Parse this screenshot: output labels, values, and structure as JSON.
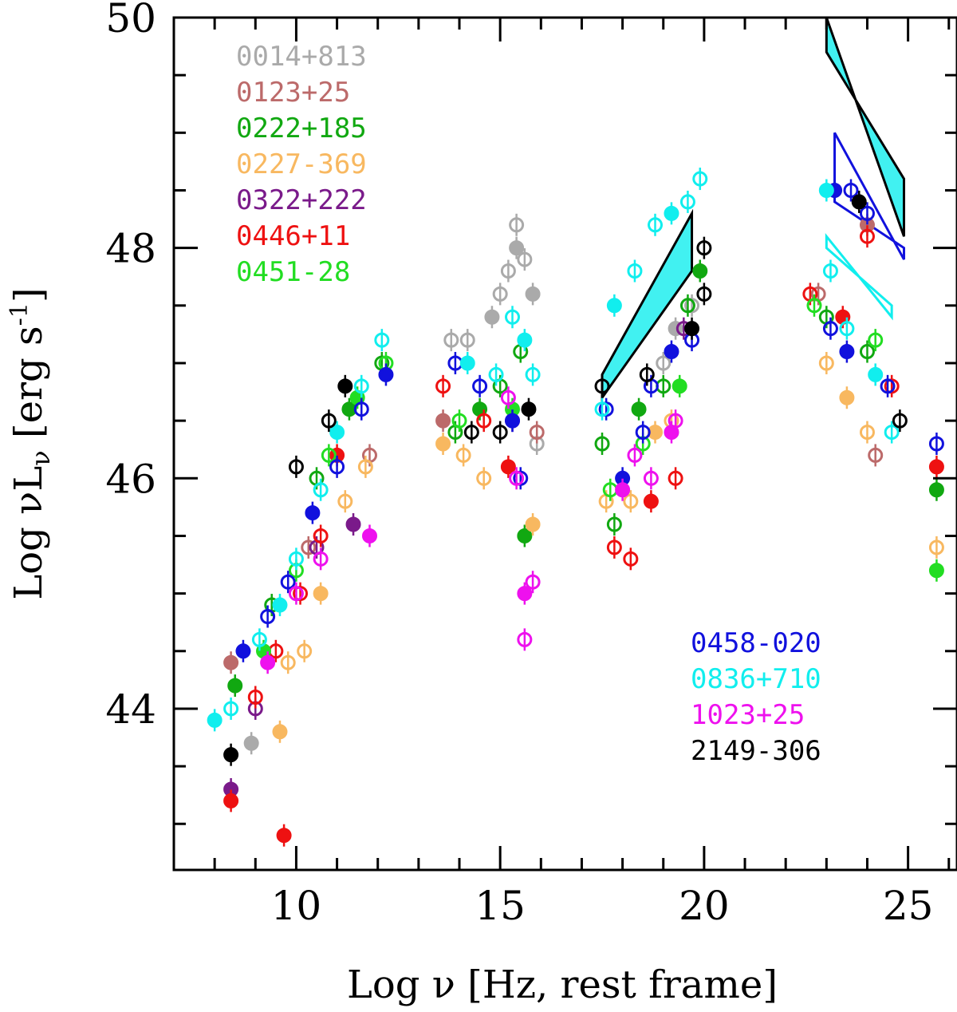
{
  "chart_data": {
    "type": "scatter",
    "xlabel": "Log ν [Hz, rest frame]",
    "ylabel": "Log νL",
    "ylabel_sub": "ν",
    "ylabel_unit": "[erg s",
    "ylabel_unit_sup": "-1",
    "ylabel_unit_end": "]",
    "xlim": [
      7,
      26.2
    ],
    "ylim": [
      42.6,
      50
    ],
    "xticks": [
      {
        "value": 10,
        "label": "10"
      },
      {
        "value": 15,
        "label": "15"
      },
      {
        "value": 20,
        "label": "20"
      },
      {
        "value": 25,
        "label": "25"
      }
    ],
    "yticks": [
      {
        "value": 44,
        "label": "44"
      },
      {
        "value": 46,
        "label": "46"
      },
      {
        "value": 48,
        "label": "48"
      },
      {
        "value": 50,
        "label": "50"
      }
    ],
    "legend_top_left": [
      {
        "name": "0014+813",
        "color": "#aaaaaa"
      },
      {
        "name": "0123+25",
        "color": "#bc6a6a"
      },
      {
        "name": "0222+185",
        "color": "#11a811"
      },
      {
        "name": "0227-369",
        "color": "#f8b860"
      },
      {
        "name": "0322+222",
        "color": "#7a1a8a"
      },
      {
        "name": "0446+11",
        "color": "#ee1111"
      },
      {
        "name": "0451-28",
        "color": "#22dd22"
      }
    ],
    "legend_bottom_right": [
      {
        "name": "0458-020",
        "color": "#1111dd"
      },
      {
        "name": "0836+710",
        "color": "#11eeee"
      },
      {
        "name": "1023+25",
        "color": "#ee11ee"
      },
      {
        "name": "2149-306",
        "color": "#000000"
      }
    ],
    "series": [
      {
        "name": "0014+813",
        "color": "#aaaaaa",
        "points": [
          [
            8.9,
            43.7
          ],
          [
            13.8,
            47.2
          ],
          [
            14.2,
            47.2
          ],
          [
            14.8,
            47.4
          ],
          [
            15.0,
            47.6
          ],
          [
            15.2,
            47.8
          ],
          [
            15.4,
            48.0
          ],
          [
            15.6,
            47.9
          ],
          [
            15.4,
            48.2
          ],
          [
            15.8,
            47.6
          ],
          [
            15.9,
            46.3
          ],
          [
            19.0,
            47.0
          ],
          [
            19.3,
            47.3
          ],
          [
            19.7,
            47.5
          ]
        ]
      },
      {
        "name": "0123+25",
        "color": "#bc6a6a",
        "points": [
          [
            8.4,
            44.4
          ],
          [
            10.3,
            45.4
          ],
          [
            11.8,
            46.2
          ],
          [
            13.6,
            46.5
          ],
          [
            15.9,
            46.4
          ],
          [
            22.8,
            47.6
          ],
          [
            24.0,
            48.2
          ],
          [
            24.2,
            46.2
          ]
        ]
      },
      {
        "name": "0222+185",
        "color": "#11a811",
        "points": [
          [
            8.5,
            44.2
          ],
          [
            9.4,
            44.9
          ],
          [
            10.5,
            46.0
          ],
          [
            11.3,
            46.6
          ],
          [
            12.1,
            47.0
          ],
          [
            13.9,
            46.4
          ],
          [
            14.5,
            46.6
          ],
          [
            15.0,
            46.8
          ],
          [
            15.5,
            47.1
          ],
          [
            15.6,
            45.5
          ],
          [
            17.5,
            46.3
          ],
          [
            17.8,
            45.6
          ],
          [
            18.4,
            46.6
          ],
          [
            19.0,
            46.8
          ],
          [
            19.6,
            47.5
          ],
          [
            19.9,
            47.8
          ],
          [
            23.0,
            47.4
          ],
          [
            24.0,
            47.1
          ],
          [
            25.7,
            45.9
          ]
        ]
      },
      {
        "name": "0227-369",
        "color": "#f8b860",
        "points": [
          [
            9.6,
            43.8
          ],
          [
            9.8,
            44.4
          ],
          [
            10.2,
            44.5
          ],
          [
            10.6,
            45.0
          ],
          [
            11.2,
            45.8
          ],
          [
            11.7,
            46.1
          ],
          [
            13.6,
            46.3
          ],
          [
            14.1,
            46.2
          ],
          [
            14.6,
            46.0
          ],
          [
            15.8,
            45.6
          ],
          [
            17.6,
            45.8
          ],
          [
            18.2,
            45.8
          ],
          [
            18.8,
            46.4
          ],
          [
            19.2,
            46.5
          ],
          [
            23.0,
            47.0
          ],
          [
            23.5,
            46.7
          ],
          [
            24.0,
            46.4
          ],
          [
            25.7,
            45.4
          ]
        ]
      },
      {
        "name": "0322+222",
        "color": "#7a1a8a",
        "points": [
          [
            8.4,
            43.3
          ],
          [
            9.0,
            44.0
          ],
          [
            10.5,
            45.4
          ],
          [
            11.4,
            45.6
          ],
          [
            15.3,
            46.5
          ],
          [
            19.5,
            47.3
          ]
        ]
      },
      {
        "name": "0446+11",
        "color": "#ee1111",
        "points": [
          [
            8.4,
            43.2
          ],
          [
            9.0,
            44.1
          ],
          [
            9.5,
            44.5
          ],
          [
            9.7,
            42.9
          ],
          [
            10.1,
            45.0
          ],
          [
            10.6,
            45.5
          ],
          [
            11.0,
            46.2
          ],
          [
            13.6,
            46.8
          ],
          [
            14.6,
            46.5
          ],
          [
            15.2,
            46.1
          ],
          [
            17.8,
            45.4
          ],
          [
            18.2,
            45.3
          ],
          [
            18.7,
            45.8
          ],
          [
            19.3,
            46.0
          ],
          [
            22.6,
            47.6
          ],
          [
            23.4,
            47.4
          ],
          [
            24.0,
            48.1
          ],
          [
            24.6,
            46.8
          ],
          [
            25.7,
            46.1
          ]
        ]
      },
      {
        "name": "0451-28",
        "color": "#22dd22",
        "points": [
          [
            9.2,
            44.5
          ],
          [
            10.0,
            45.2
          ],
          [
            10.8,
            46.2
          ],
          [
            11.5,
            46.7
          ],
          [
            12.2,
            47.0
          ],
          [
            14.0,
            46.5
          ],
          [
            15.3,
            46.6
          ],
          [
            17.7,
            45.9
          ],
          [
            18.5,
            46.3
          ],
          [
            19.4,
            46.8
          ],
          [
            22.7,
            47.5
          ],
          [
            24.2,
            47.2
          ],
          [
            25.7,
            45.2
          ]
        ]
      },
      {
        "name": "0458-020",
        "color": "#1111dd",
        "points": [
          [
            8.7,
            44.5
          ],
          [
            9.3,
            44.8
          ],
          [
            9.8,
            45.1
          ],
          [
            10.4,
            45.7
          ],
          [
            11.0,
            46.1
          ],
          [
            11.6,
            46.6
          ],
          [
            12.2,
            46.9
          ],
          [
            13.9,
            47.0
          ],
          [
            14.5,
            46.8
          ],
          [
            15.3,
            46.5
          ],
          [
            15.5,
            46.0
          ],
          [
            17.6,
            46.6
          ],
          [
            18.0,
            46.0
          ],
          [
            18.5,
            46.4
          ],
          [
            18.7,
            46.8
          ],
          [
            19.2,
            47.1
          ],
          [
            19.7,
            47.2
          ],
          [
            23.1,
            47.3
          ],
          [
            23.2,
            48.5
          ],
          [
            23.6,
            48.5
          ],
          [
            24.0,
            48.3
          ],
          [
            23.5,
            47.1
          ],
          [
            24.5,
            46.8
          ],
          [
            25.7,
            46.3
          ]
        ]
      },
      {
        "name": "0836+710",
        "color": "#11eeee",
        "points": [
          [
            8.0,
            43.9
          ],
          [
            8.4,
            44.0
          ],
          [
            9.1,
            44.6
          ],
          [
            9.6,
            44.9
          ],
          [
            10.0,
            45.3
          ],
          [
            10.6,
            45.9
          ],
          [
            11.0,
            46.4
          ],
          [
            11.6,
            46.8
          ],
          [
            12.1,
            47.2
          ],
          [
            14.2,
            47.0
          ],
          [
            14.9,
            46.9
          ],
          [
            15.3,
            47.4
          ],
          [
            15.6,
            47.2
          ],
          [
            15.8,
            46.9
          ],
          [
            17.5,
            46.6
          ],
          [
            17.8,
            47.5
          ],
          [
            18.3,
            47.8
          ],
          [
            18.8,
            48.2
          ],
          [
            19.2,
            48.3
          ],
          [
            19.6,
            48.4
          ],
          [
            19.9,
            48.6
          ],
          [
            23.0,
            48.5
          ],
          [
            23.1,
            47.8
          ],
          [
            23.5,
            47.3
          ],
          [
            24.2,
            46.9
          ],
          [
            24.6,
            46.4
          ]
        ]
      },
      {
        "name": "1023+25",
        "color": "#ee11ee",
        "points": [
          [
            9.3,
            44.4
          ],
          [
            10.0,
            45.0
          ],
          [
            10.6,
            45.3
          ],
          [
            11.8,
            45.5
          ],
          [
            15.2,
            46.7
          ],
          [
            15.4,
            46.0
          ],
          [
            15.6,
            45.0
          ],
          [
            15.6,
            44.6
          ],
          [
            15.8,
            45.1
          ],
          [
            18.0,
            45.9
          ],
          [
            18.3,
            46.2
          ],
          [
            18.7,
            46.0
          ],
          [
            19.2,
            46.4
          ],
          [
            19.3,
            46.5
          ]
        ]
      },
      {
        "name": "2149-306",
        "color": "#000000",
        "points": [
          [
            8.4,
            43.6
          ],
          [
            10.0,
            46.1
          ],
          [
            10.8,
            46.5
          ],
          [
            11.2,
            46.8
          ],
          [
            14.3,
            46.4
          ],
          [
            15.0,
            46.4
          ],
          [
            15.7,
            46.6
          ],
          [
            17.5,
            46.8
          ],
          [
            18.6,
            46.9
          ],
          [
            19.7,
            47.3
          ],
          [
            20.0,
            47.6
          ],
          [
            20.0,
            48.0
          ],
          [
            23.8,
            48.4
          ],
          [
            24.8,
            46.5
          ]
        ]
      }
    ],
    "bowties": [
      {
        "color": "#000000",
        "fill": "#11eeee",
        "corners": [
          [
            23.0,
            50.0
          ],
          [
            24.9,
            48.1
          ],
          [
            24.9,
            48.6
          ],
          [
            23.0,
            49.7
          ]
        ],
        "pivot": [
          24.2,
          49.0
        ]
      },
      {
        "color": "#1111dd",
        "fill": "none",
        "corners": [
          [
            23.2,
            49.0
          ],
          [
            24.9,
            47.9
          ],
          [
            24.9,
            48.0
          ],
          [
            23.2,
            48.4
          ]
        ],
        "pivot": [
          24.1,
          48.5
        ]
      },
      {
        "color": "#11eeee",
        "fill": "none",
        "corners": [
          [
            23.0,
            48.1
          ],
          [
            24.6,
            47.4
          ],
          [
            24.6,
            47.5
          ],
          [
            23.0,
            48.0
          ]
        ],
        "pivot": [
          24.0,
          47.7
        ]
      },
      {
        "color": "#000000",
        "fill": "#11eeee",
        "corners": [
          [
            17.5,
            46.9
          ],
          [
            19.7,
            48.3
          ],
          [
            19.7,
            47.8
          ],
          [
            17.5,
            46.7
          ]
        ],
        "pivot": [
          18.4,
          47.2
        ]
      }
    ]
  }
}
